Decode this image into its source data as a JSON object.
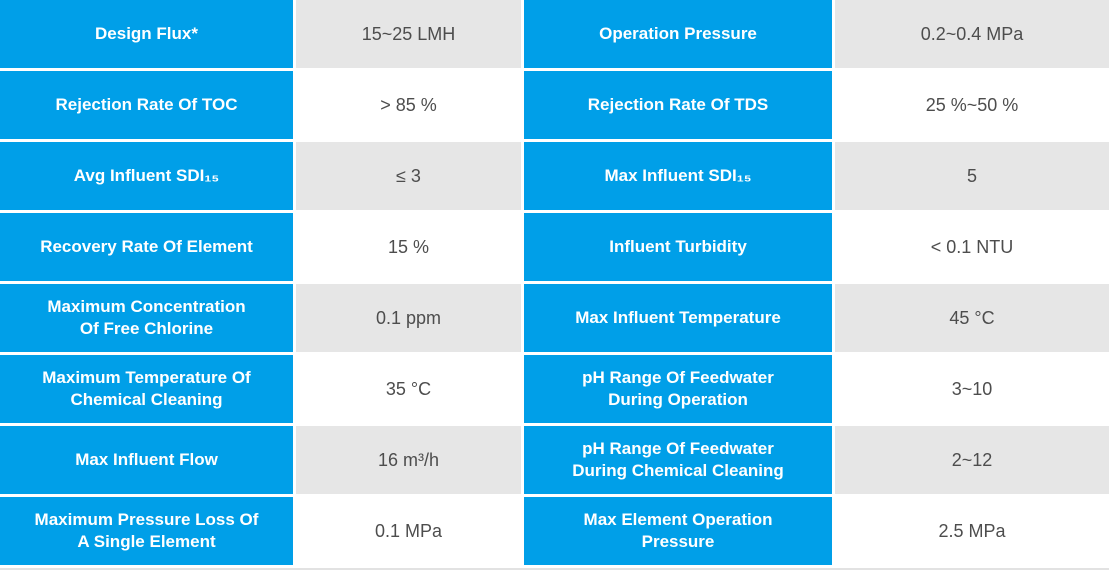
{
  "table": {
    "rows": [
      {
        "label_left": "Design Flux*",
        "value_left": "15~25 LMH",
        "label_right": "Operation Pressure",
        "value_right": "0.2~0.4 MPa"
      },
      {
        "label_left": "Rejection Rate Of TOC",
        "value_left": "> 85 %",
        "label_right": "Rejection Rate Of TDS",
        "value_right": "25 %~50 %"
      },
      {
        "label_left": "Avg Influent SDI₁₅",
        "value_left": "≤ 3",
        "label_right": "Max Influent SDI₁₅",
        "value_right": "5"
      },
      {
        "label_left": "Recovery Rate Of Element",
        "value_left": "15 %",
        "label_right": "Influent Turbidity",
        "value_right": "< 0.1 NTU"
      },
      {
        "label_left": "Maximum Concentration\nOf Free Chlorine",
        "value_left": "0.1 ppm",
        "label_right": "Max Influent Temperature",
        "value_right": "45 °C"
      },
      {
        "label_left": "Maximum Temperature Of\nChemical Cleaning",
        "value_left": "35 °C",
        "label_right": "pH Range Of Feedwater\nDuring Operation",
        "value_right": "3~10"
      },
      {
        "label_left": "Max Influent Flow",
        "value_left": "16 m³/h",
        "label_right": "pH Range Of Feedwater\nDuring Chemical Cleaning",
        "value_right": "2~12"
      },
      {
        "label_left": "Maximum Pressure Loss Of\nA Single Element",
        "value_left": "0.1 MPa",
        "label_right": "Max Element Operation\nPressure",
        "value_right": "2.5 MPa"
      }
    ]
  },
  "colors": {
    "label_cell_blue": "#009FE8",
    "value_cell_alt_gray": "#E6E6E6",
    "value_cell_white": "#FFFFFF",
    "value_text": "#4D4D4D",
    "label_text": "#FFFFFF",
    "bottom_divider": "#E2E2E2"
  }
}
